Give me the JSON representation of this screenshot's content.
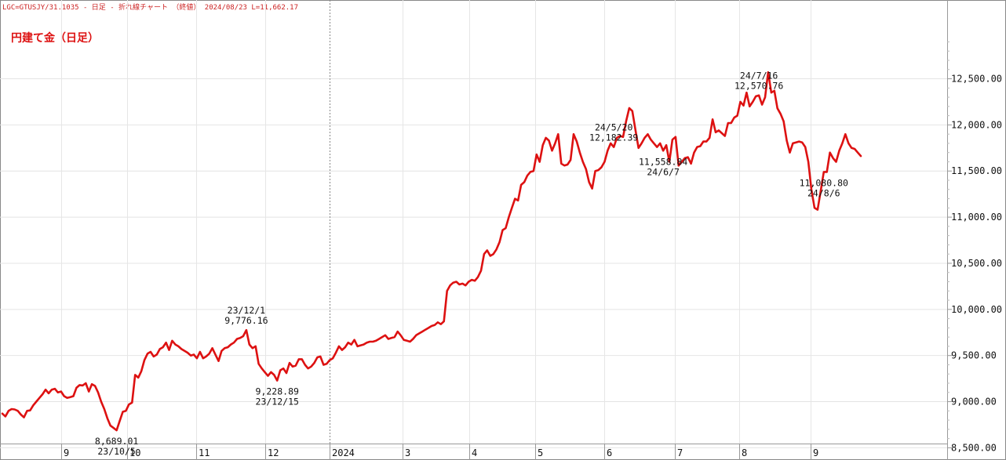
{
  "header": {
    "text": "LGC=GTUSJY/31.1035 - 日足 - 折れ線チャート （終値） 2024/08/23 L=11,662.17"
  },
  "chart_data": {
    "type": "line",
    "title": "円建て金（日足）",
    "xlabel": "",
    "ylabel": "",
    "ylim": [
      8450,
      12950
    ],
    "y_ticks": [
      "8,500.00",
      "9,000.00",
      "9,500.00",
      "10,000.00",
      "10,500.00",
      "11,000.00",
      "11,500.00",
      "12,000.00",
      "12,500.00"
    ],
    "y_tick_values": [
      8500,
      9000,
      9500,
      10000,
      10500,
      11000,
      11500,
      12000,
      12500
    ],
    "x_ticks": [
      "9",
      "10",
      "11",
      "12",
      "2024",
      "3",
      "4",
      "5",
      "6",
      "7",
      "8",
      "9"
    ],
    "grid": true,
    "year_divider": "2024",
    "line_color": "#dd1111",
    "series": [
      {
        "values": [
          8870,
          8840,
          8900,
          8920,
          8915,
          8900,
          8860,
          8830,
          8900,
          8905,
          8960,
          9000,
          9040,
          9080,
          9130,
          9090,
          9130,
          9140,
          9100,
          9110,
          9060,
          9040,
          9050,
          9060,
          9150,
          9180,
          9175,
          9200,
          9110,
          9190,
          9170,
          9100,
          9000,
          8920,
          8820,
          8740,
          8715,
          8689.01,
          8790,
          8890,
          8900,
          8970,
          8990,
          9290,
          9260,
          9330,
          9450,
          9520,
          9540,
          9490,
          9510,
          9570,
          9590,
          9640,
          9560,
          9660,
          9620,
          9600,
          9570,
          9550,
          9530,
          9500,
          9510,
          9470,
          9540,
          9470,
          9490,
          9520,
          9580,
          9510,
          9440,
          9550,
          9580,
          9590,
          9620,
          9640,
          9680,
          9690,
          9710,
          9776.16,
          9620,
          9580,
          9600,
          9410,
          9360,
          9320,
          9280,
          9320,
          9290,
          9228.89,
          9340,
          9360,
          9310,
          9420,
          9380,
          9390,
          9460,
          9460,
          9400,
          9360,
          9380,
          9420,
          9480,
          9490,
          9400,
          9410,
          9450,
          9470,
          9530,
          9600,
          9560,
          9590,
          9640,
          9620,
          9670,
          9600,
          9610,
          9620,
          9640,
          9650,
          9650,
          9660,
          9680,
          9700,
          9720,
          9680,
          9690,
          9700,
          9760,
          9720,
          9670,
          9660,
          9650,
          9680,
          9720,
          9740,
          9760,
          9780,
          9800,
          9820,
          9830,
          9860,
          9840,
          9870,
          10200,
          10260,
          10290,
          10300,
          10270,
          10280,
          10260,
          10300,
          10320,
          10310,
          10350,
          10420,
          10600,
          10640,
          10580,
          10600,
          10650,
          10730,
          10860,
          10880,
          11000,
          11100,
          11200,
          11180,
          11350,
          11380,
          11450,
          11490,
          11500,
          11680,
          11600,
          11780,
          11860,
          11830,
          11720,
          11800,
          11900,
          11580,
          11560,
          11570,
          11620,
          11900,
          11820,
          11700,
          11600,
          11520,
          11380,
          11310,
          11500,
          11510,
          11540,
          11600,
          11720,
          11800,
          11760,
          11860,
          11880,
          11870,
          12040,
          12182.39,
          12150,
          11950,
          11750,
          11800,
          11860,
          11900,
          11840,
          11800,
          11760,
          11800,
          11720,
          11780,
          11600,
          11840,
          11870,
          11558.84,
          11600,
          11640,
          11650,
          11580,
          11700,
          11760,
          11770,
          11820,
          11820,
          11860,
          12060,
          11920,
          11940,
          11910,
          11880,
          12020,
          12020,
          12080,
          12100,
          12250,
          12210,
          12350,
          12200,
          12250,
          12310,
          12320,
          12220,
          12300,
          12570.76,
          12350,
          12370,
          12180,
          12120,
          12040,
          11830,
          11700,
          11800,
          11810,
          11820,
          11810,
          11760,
          11600,
          11300,
          11100,
          11080.8,
          11280,
          11490,
          11490,
          11700,
          11640,
          11600,
          11720,
          11800,
          11900,
          11800,
          11750,
          11740,
          11700,
          11662.17
        ]
      }
    ],
    "annotations": [
      {
        "lines": [
          "8,689.01",
          "23/10/5"
        ],
        "index": 37,
        "position": "below"
      },
      {
        "lines": [
          "23/12/1",
          "9,776.16"
        ],
        "index": 79,
        "position": "above"
      },
      {
        "lines": [
          "9,228.89",
          "23/12/15"
        ],
        "index": 89,
        "position": "below"
      },
      {
        "lines": [
          "24/5/20",
          "12,182.39"
        ],
        "index": 198,
        "position": "above"
      },
      {
        "lines": [
          "11,558.84",
          "24/6/7"
        ],
        "index": 214,
        "position": "below"
      },
      {
        "lines": [
          "24/7/16",
          "12,570.76"
        ],
        "index": 245,
        "position": "above"
      },
      {
        "lines": [
          "11,080.80",
          "24/8/6"
        ],
        "index": 266,
        "position": "below"
      }
    ]
  }
}
